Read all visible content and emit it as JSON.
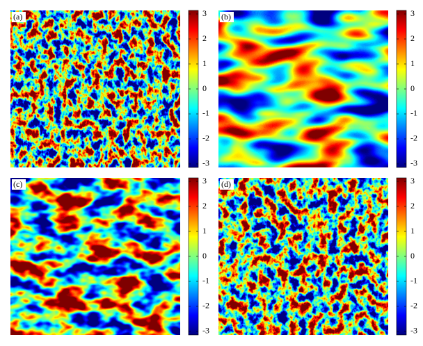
{
  "chart_data": [
    {
      "type": "heatmap",
      "label": "(a)",
      "colormap": "jet",
      "clim": [
        -3.14,
        3.14
      ],
      "cticks": [
        3,
        2,
        1,
        0,
        -1,
        -2,
        -3
      ]
    },
    {
      "type": "heatmap",
      "label": "(b)",
      "colormap": "jet",
      "clim": [
        -3.14,
        3.14
      ],
      "cticks": [
        3,
        2,
        1,
        0,
        -1,
        -2,
        -3
      ]
    },
    {
      "type": "heatmap",
      "label": "(c)",
      "colormap": "jet",
      "clim": [
        -3.14,
        3.14
      ],
      "cticks": [
        3,
        2,
        1,
        0,
        -1,
        -2,
        -3
      ]
    },
    {
      "type": "heatmap",
      "label": "(d)",
      "colormap": "jet",
      "clim": [
        -3.14,
        3.14
      ],
      "cticks": [
        3,
        2,
        1,
        0,
        -1,
        -2,
        -3
      ]
    }
  ]
}
